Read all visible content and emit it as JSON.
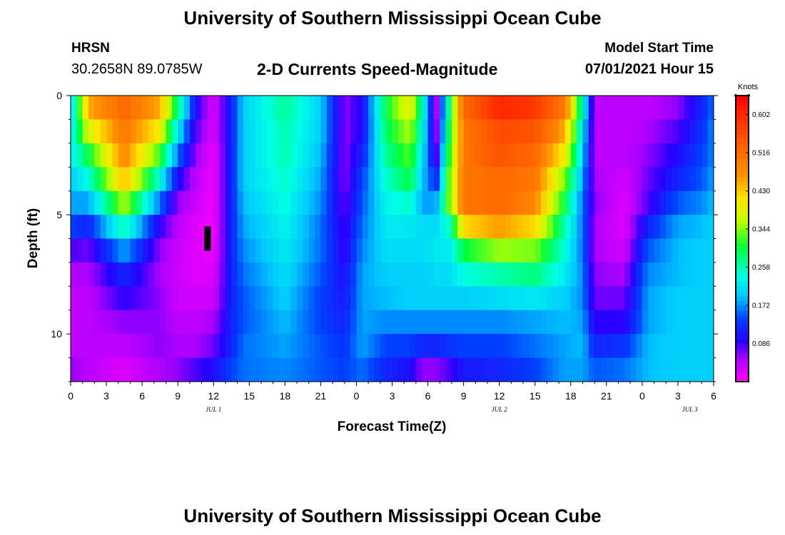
{
  "header": {
    "title": "University of Southern Mississippi Ocean Cube",
    "station_name": "HRSN",
    "station_coords": "30.2658N  89.0785W",
    "plot_title": "2-D Currents Speed-Magnitude",
    "model_label": "Model Start Time",
    "model_time": "07/01/2021 Hour 15"
  },
  "footer": {
    "title": "University of Southern Mississippi Ocean Cube"
  },
  "chart_data": {
    "type": "heatmap",
    "title": "2-D Currents Speed-Magnitude",
    "xlabel": "Forecast Time(Z)",
    "ylabel": "Depth (ft)",
    "x_hours_from_jul1_00": [
      0,
      54
    ],
    "ylim": [
      12,
      0
    ],
    "x_tick_labels": [
      "0",
      "3",
      "6",
      "9",
      "12",
      "15",
      "18",
      "21",
      "0",
      "3",
      "6",
      "9",
      "12",
      "15",
      "18",
      "21",
      "0",
      "3",
      "6"
    ],
    "y_tick_labels": [
      "0",
      "5",
      "10"
    ],
    "y_tick_values": [
      0,
      5,
      10
    ],
    "day_labels": [
      {
        "label": "JUL 1",
        "hour": 12
      },
      {
        "label": "JUL 2",
        "hour": 36
      },
      {
        "label": "JUL 3",
        "hour": 52
      }
    ],
    "colorbar": {
      "unit": "Knots",
      "min": 0.0,
      "max": 0.645,
      "tick_labels": [
        "0.602",
        "0.516",
        "0.430",
        "0.344",
        "0.258",
        "0.172",
        "0.086"
      ],
      "tick_values": [
        0.602,
        0.516,
        0.43,
        0.344,
        0.258,
        0.172,
        0.086
      ]
    },
    "marker": {
      "hour": 11.5,
      "depth": 6
    },
    "depth_levels_ft": [
      0.5,
      1.5,
      2.5,
      3.5,
      4.5,
      5.5,
      6.5,
      7.5,
      8.5,
      9.5,
      10.5,
      11.5
    ],
    "keyframes": [
      {
        "t": 0.0,
        "speed": [
          0.2,
          0.22,
          0.22,
          0.2,
          0.18,
          0.14,
          0.08,
          0.05,
          0.04,
          0.04,
          0.04,
          0.06
        ]
      },
      {
        "t": 1.5,
        "speed": [
          0.45,
          0.38,
          0.3,
          0.24,
          0.18,
          0.12,
          0.07,
          0.05,
          0.04,
          0.04,
          0.04,
          0.04
        ]
      },
      {
        "t": 4.5,
        "speed": [
          0.52,
          0.5,
          0.48,
          0.44,
          0.36,
          0.26,
          0.18,
          0.12,
          0.09,
          0.06,
          0.04,
          0.02
        ]
      },
      {
        "t": 7.5,
        "speed": [
          0.45,
          0.4,
          0.32,
          0.24,
          0.16,
          0.09,
          0.06,
          0.05,
          0.06,
          0.06,
          0.06,
          0.05
        ]
      },
      {
        "t": 9.0,
        "speed": [
          0.28,
          0.22,
          0.16,
          0.1,
          0.06,
          0.04,
          0.03,
          0.03,
          0.03,
          0.04,
          0.05,
          0.06
        ]
      },
      {
        "t": 10.5,
        "speed": [
          0.1,
          0.08,
          0.06,
          0.04,
          0.03,
          0.02,
          0.02,
          0.02,
          0.03,
          0.04,
          0.05,
          0.08
        ]
      },
      {
        "t": 12.0,
        "speed": [
          0.02,
          0.02,
          0.01,
          0.01,
          0.01,
          0.01,
          0.01,
          0.02,
          0.03,
          0.05,
          0.07,
          0.1
        ]
      },
      {
        "t": 13.5,
        "speed": [
          0.12,
          0.12,
          0.12,
          0.12,
          0.12,
          0.12,
          0.12,
          0.12,
          0.12,
          0.12,
          0.12,
          0.14
        ]
      },
      {
        "t": 14.5,
        "speed": [
          0.2,
          0.2,
          0.2,
          0.2,
          0.19,
          0.18,
          0.17,
          0.16,
          0.15,
          0.15,
          0.16,
          0.16
        ]
      },
      {
        "t": 18.0,
        "speed": [
          0.27,
          0.26,
          0.26,
          0.25,
          0.24,
          0.23,
          0.22,
          0.21,
          0.2,
          0.19,
          0.18,
          0.17
        ]
      },
      {
        "t": 21.0,
        "speed": [
          0.2,
          0.2,
          0.19,
          0.18,
          0.17,
          0.16,
          0.16,
          0.15,
          0.14,
          0.14,
          0.15,
          0.15
        ]
      },
      {
        "t": 23.0,
        "speed": [
          0.06,
          0.06,
          0.06,
          0.06,
          0.07,
          0.08,
          0.09,
          0.1,
          0.11,
          0.12,
          0.13,
          0.14
        ]
      },
      {
        "t": 24.5,
        "speed": [
          0.1,
          0.1,
          0.12,
          0.14,
          0.15,
          0.16,
          0.17,
          0.18,
          0.18,
          0.18,
          0.18,
          0.16
        ]
      },
      {
        "t": 26.5,
        "speed": [
          0.3,
          0.29,
          0.27,
          0.25,
          0.23,
          0.22,
          0.21,
          0.2,
          0.19,
          0.17,
          0.14,
          0.12
        ]
      },
      {
        "t": 28.5,
        "speed": [
          0.4,
          0.36,
          0.33,
          0.3,
          0.25,
          0.22,
          0.21,
          0.2,
          0.2,
          0.17,
          0.14,
          0.1
        ]
      },
      {
        "t": 29.5,
        "speed": [
          0.26,
          0.24,
          0.22,
          0.2,
          0.18,
          0.21,
          0.21,
          0.2,
          0.2,
          0.17,
          0.12,
          0.06
        ]
      },
      {
        "t": 30.7,
        "speed": [
          0.04,
          0.05,
          0.07,
          0.12,
          0.18,
          0.21,
          0.22,
          0.21,
          0.2,
          0.17,
          0.12,
          0.06
        ]
      },
      {
        "t": 31.8,
        "speed": [
          0.28,
          0.3,
          0.32,
          0.34,
          0.34,
          0.25,
          0.22,
          0.21,
          0.2,
          0.17,
          0.13,
          0.08
        ]
      },
      {
        "t": 33.0,
        "speed": [
          0.52,
          0.5,
          0.5,
          0.5,
          0.5,
          0.42,
          0.3,
          0.24,
          0.2,
          0.17,
          0.14,
          0.11
        ]
      },
      {
        "t": 36.0,
        "speed": [
          0.6,
          0.56,
          0.55,
          0.52,
          0.52,
          0.46,
          0.35,
          0.26,
          0.21,
          0.17,
          0.14,
          0.12
        ]
      },
      {
        "t": 39.0,
        "speed": [
          0.58,
          0.55,
          0.52,
          0.5,
          0.48,
          0.42,
          0.34,
          0.28,
          0.22,
          0.18,
          0.16,
          0.14
        ]
      },
      {
        "t": 41.5,
        "speed": [
          0.5,
          0.45,
          0.4,
          0.34,
          0.3,
          0.26,
          0.24,
          0.22,
          0.2,
          0.19,
          0.18,
          0.18
        ]
      },
      {
        "t": 43.0,
        "speed": [
          0.25,
          0.22,
          0.2,
          0.18,
          0.16,
          0.16,
          0.16,
          0.17,
          0.17,
          0.18,
          0.19,
          0.18
        ]
      },
      {
        "t": 44.0,
        "speed": [
          0.04,
          0.04,
          0.04,
          0.05,
          0.06,
          0.05,
          0.05,
          0.06,
          0.07,
          0.09,
          0.12,
          0.15
        ]
      },
      {
        "t": 46.5,
        "speed": [
          0.04,
          0.04,
          0.04,
          0.03,
          0.02,
          0.02,
          0.03,
          0.05,
          0.07,
          0.09,
          0.13,
          0.16
        ]
      },
      {
        "t": 48.5,
        "speed": [
          0.04,
          0.05,
          0.06,
          0.07,
          0.08,
          0.12,
          0.15,
          0.17,
          0.18,
          0.18,
          0.19,
          0.19
        ]
      },
      {
        "t": 51.0,
        "speed": [
          0.06,
          0.08,
          0.1,
          0.12,
          0.15,
          0.18,
          0.19,
          0.19,
          0.2,
          0.2,
          0.2,
          0.2
        ]
      },
      {
        "t": 53.0,
        "speed": [
          0.12,
          0.13,
          0.14,
          0.15,
          0.17,
          0.19,
          0.2,
          0.2,
          0.2,
          0.2,
          0.2,
          0.2
        ]
      },
      {
        "t": 54.0,
        "speed": [
          0.16,
          0.17,
          0.17,
          0.18,
          0.19,
          0.2,
          0.2,
          0.2,
          0.2,
          0.2,
          0.2,
          0.2
        ]
      }
    ]
  }
}
